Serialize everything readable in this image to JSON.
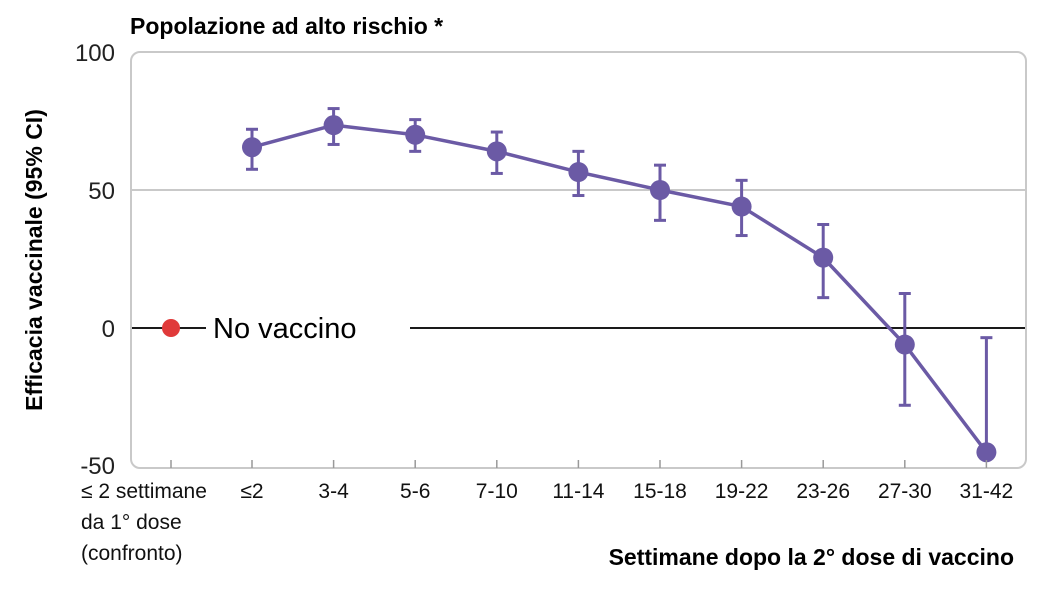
{
  "chart_data": {
    "type": "line",
    "title": "Popolazione ad alto rischio *",
    "xlabel": "Settimane dopo la 2° dose di vaccino",
    "ylabel": "Efficacia vaccinale (95% CI)",
    "ylim": [
      -50,
      100
    ],
    "yticks": [
      "100",
      "50",
      "0",
      "-50"
    ],
    "reference_label": [
      "≤ 2 settimane",
      "da 1° dose",
      "(confronto)"
    ],
    "reference_point": {
      "label": "No vaccino",
      "value": 0
    },
    "categories": [
      "≤2",
      "3-4",
      "5-6",
      "7-10",
      "11-14",
      "15-18",
      "19-22",
      "23-26",
      "27-30",
      "31-42"
    ],
    "values": [
      65.5,
      73.5,
      70,
      64,
      56.5,
      50,
      44,
      25.5,
      -6,
      -45
    ],
    "ci_upper": [
      72,
      79.5,
      75.5,
      71,
      64,
      59,
      53.5,
      37.5,
      12.5,
      -3.5
    ],
    "ci_lower": [
      57.5,
      66.5,
      64,
      56,
      48,
      39,
      33.5,
      11,
      -28,
      -45
    ],
    "grid": "horizontal at 50",
    "colors": {
      "series": "#6b5aa5",
      "reference_point": "#e03a3a",
      "frame": "#c9c9c9",
      "zero_line": "#1a1a1a"
    }
  }
}
